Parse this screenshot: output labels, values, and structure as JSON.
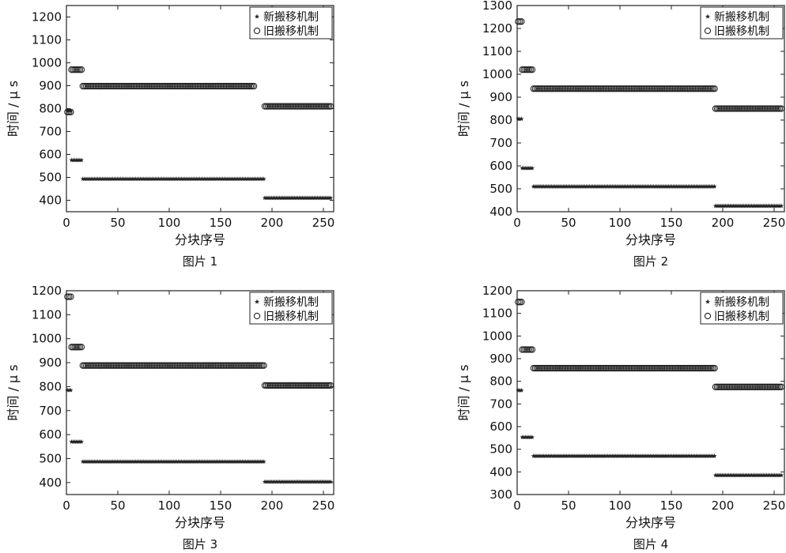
{
  "chart_data": [
    {
      "type": "scatter",
      "caption": "图片 1",
      "xlabel": "分块序号",
      "ylabel": "时间 / μ s",
      "xlim": [
        0,
        260
      ],
      "ylim": [
        350,
        1250
      ],
      "xticks": [
        0,
        50,
        100,
        150,
        200,
        250
      ],
      "yticks": [
        400,
        500,
        600,
        700,
        800,
        900,
        1000,
        1100,
        1200
      ],
      "legend": "top-right",
      "series": [
        {
          "name": "新搬移机制",
          "marker": "star",
          "segments": [
            {
              "x": [
                1,
                5
              ],
              "y": 790
            },
            {
              "x": [
                5,
                16
              ],
              "y": 575
            },
            {
              "x": [
                16,
                192
              ],
              "y": 493
            },
            {
              "x": [
                193,
                257
              ],
              "y": 410
            }
          ]
        },
        {
          "name": "旧搬移机制",
          "marker": "circle",
          "segments": [
            {
              "x": [
                1,
                5
              ],
              "y": 785
            },
            {
              "x": [
                5,
                16
              ],
              "y": 970
            },
            {
              "x": [
                16,
                183
              ],
              "y": 898
            },
            {
              "x": [
                193,
                257
              ],
              "y": 810
            }
          ]
        }
      ]
    },
    {
      "type": "scatter",
      "caption": "图片 2",
      "xlabel": "分块序号",
      "ylabel": "时间 / μ s",
      "xlim": [
        0,
        260
      ],
      "ylim": [
        400,
        1300
      ],
      "xticks": [
        0,
        50,
        100,
        150,
        200,
        250
      ],
      "yticks": [
        400,
        500,
        600,
        700,
        800,
        900,
        1000,
        1100,
        1200,
        1300
      ],
      "legend": "top-right",
      "series": [
        {
          "name": "新搬移机制",
          "marker": "star",
          "segments": [
            {
              "x": [
                1,
                5
              ],
              "y": 805
            },
            {
              "x": [
                5,
                16
              ],
              "y": 590
            },
            {
              "x": [
                16,
                192
              ],
              "y": 510
            },
            {
              "x": [
                193,
                257
              ],
              "y": 425
            }
          ]
        },
        {
          "name": "旧搬移机制",
          "marker": "circle",
          "segments": [
            {
              "x": [
                1,
                5
              ],
              "y": 1230
            },
            {
              "x": [
                5,
                16
              ],
              "y": 1020
            },
            {
              "x": [
                16,
                192
              ],
              "y": 937
            },
            {
              "x": [
                193,
                257
              ],
              "y": 850
            }
          ]
        }
      ]
    },
    {
      "type": "scatter",
      "caption": "图片 3",
      "xlabel": "分块序号",
      "ylabel": "时间 / μ s",
      "xlim": [
        0,
        260
      ],
      "ylim": [
        350,
        1200
      ],
      "xticks": [
        0,
        50,
        100,
        150,
        200,
        250
      ],
      "yticks": [
        400,
        500,
        600,
        700,
        800,
        900,
        1000,
        1100,
        1200
      ],
      "legend": "top-right",
      "series": [
        {
          "name": "新搬移机制",
          "marker": "star",
          "segments": [
            {
              "x": [
                1,
                5
              ],
              "y": 785
            },
            {
              "x": [
                5,
                16
              ],
              "y": 570
            },
            {
              "x": [
                16,
                192
              ],
              "y": 487
            },
            {
              "x": [
                193,
                257
              ],
              "y": 403
            }
          ]
        },
        {
          "name": "旧搬移机制",
          "marker": "circle",
          "segments": [
            {
              "x": [
                1,
                5
              ],
              "y": 1175
            },
            {
              "x": [
                5,
                16
              ],
              "y": 965
            },
            {
              "x": [
                16,
                192
              ],
              "y": 888
            },
            {
              "x": [
                193,
                257
              ],
              "y": 805
            }
          ]
        }
      ]
    },
    {
      "type": "scatter",
      "caption": "图片 4",
      "xlabel": "分块序号",
      "ylabel": "时间 / μ s",
      "xlim": [
        0,
        260
      ],
      "ylim": [
        300,
        1200
      ],
      "xticks": [
        0,
        50,
        100,
        150,
        200,
        250
      ],
      "yticks": [
        300,
        400,
        500,
        600,
        700,
        800,
        900,
        1000,
        1100,
        1200
      ],
      "legend": "top-right",
      "series": [
        {
          "name": "新搬移机制",
          "marker": "star",
          "segments": [
            {
              "x": [
                1,
                5
              ],
              "y": 760
            },
            {
              "x": [
                5,
                16
              ],
              "y": 553
            },
            {
              "x": [
                16,
                192
              ],
              "y": 470
            },
            {
              "x": [
                193,
                257
              ],
              "y": 385
            }
          ]
        },
        {
          "name": "旧搬移机制",
          "marker": "circle",
          "segments": [
            {
              "x": [
                1,
                5
              ],
              "y": 1150
            },
            {
              "x": [
                5,
                16
              ],
              "y": 940
            },
            {
              "x": [
                16,
                192
              ],
              "y": 858
            },
            {
              "x": [
                193,
                257
              ],
              "y": 775
            }
          ]
        }
      ]
    }
  ]
}
